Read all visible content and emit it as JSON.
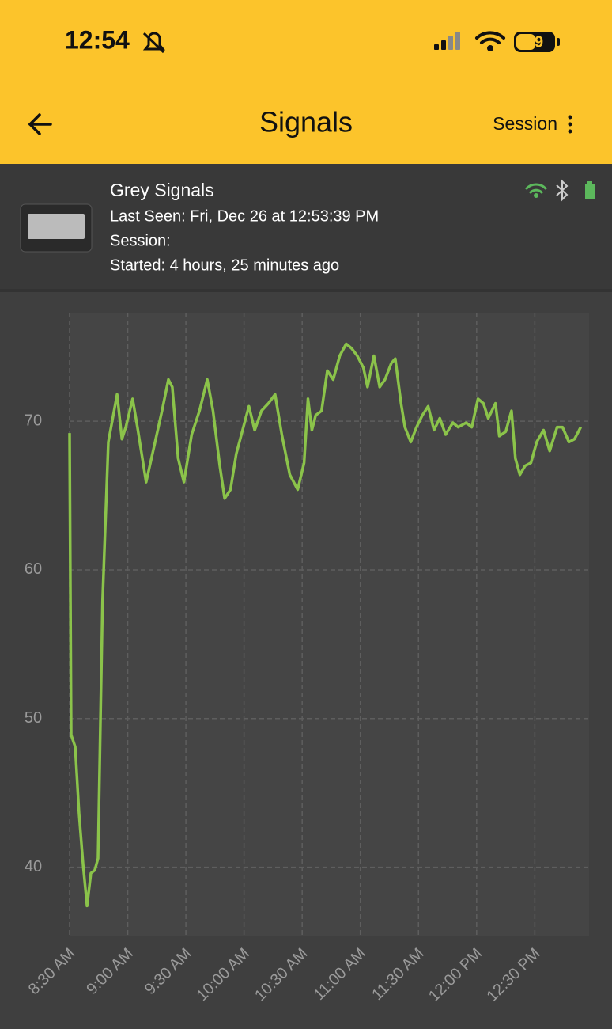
{
  "status_bar": {
    "time": "12:54",
    "battery": 49
  },
  "header": {
    "title": "Signals",
    "action": "Session"
  },
  "device": {
    "name": "Grey Signals",
    "last_seen": "Last Seen: Fri, Dec 26 at 12:53:39 PM",
    "session": "Session:",
    "started": "Started: 4 hours, 25 minutes ago"
  },
  "chart_data": {
    "type": "line",
    "x": [
      510,
      510.8,
      512.9,
      514.9,
      517,
      519,
      521,
      523,
      524.7,
      527,
      530,
      534.5,
      537,
      539,
      542.5,
      545,
      549.5,
      553.6,
      557.7,
      561,
      563,
      566,
      569,
      573,
      577,
      581,
      584,
      587.5,
      590,
      593,
      596,
      602.5,
      605.5,
      609,
      612.6,
      616,
      619.5,
      623.6,
      627.7,
      631,
      633,
      635,
      637,
      640,
      643,
      646,
      649.4,
      652.7,
      655.5,
      658.4,
      661.6,
      663.7,
      667,
      670,
      672.7,
      676,
      678,
      681,
      683,
      686,
      689,
      692,
      695,
      698,
      701,
      704,
      707.7,
      710.5,
      714.6,
      717.5,
      720.7,
      723.5,
      726,
      729.7,
      731.7,
      735,
      738,
      740,
      742.3,
      745,
      748,
      751,
      754.5,
      757.7,
      761.5,
      764.3,
      767.6,
      770.5,
      773.7
    ],
    "series": [
      {
        "color": "#8bc34a",
        "values": [
          69.2,
          48.9,
          48.1,
          43.6,
          40.1,
          37.4,
          39.6,
          39.8,
          40.6,
          57.9,
          68.6,
          71.8,
          68.8,
          69.6,
          71.5,
          69.6,
          65.9,
          68.3,
          70.7,
          72.8,
          72.3,
          67.5,
          65.9,
          69.1,
          70.7,
          72.8,
          70.7,
          67,
          64.8,
          65.4,
          67.8,
          71,
          69.4,
          70.7,
          71.2,
          71.8,
          69.1,
          66.4,
          65.4,
          67.2,
          71.5,
          69.4,
          70.4,
          70.7,
          73.4,
          72.8,
          74.4,
          75.2,
          74.9,
          74.4,
          73.6,
          72.3,
          74.4,
          72.3,
          72.8,
          73.9,
          74.2,
          71.2,
          69.6,
          68.6,
          69.6,
          70.4,
          71,
          69.4,
          70.2,
          69.1,
          69.9,
          69.6,
          69.9,
          69.6,
          71.5,
          71.2,
          70.2,
          71.2,
          69,
          69.3,
          70.7,
          67.5,
          66.4,
          67,
          67.2,
          68.6,
          69.4,
          68,
          69.6,
          69.6,
          68.6,
          68.8,
          69.6
        ]
      }
    ],
    "xlim": [
      510,
      778
    ],
    "xticks": [
      {
        "value": 510,
        "label": "8:30 AM"
      },
      {
        "value": 540,
        "label": "9:00 AM"
      },
      {
        "value": 570,
        "label": "9:30 AM"
      },
      {
        "value": 600,
        "label": "10:00 AM"
      },
      {
        "value": 630,
        "label": "10:30 AM"
      },
      {
        "value": 660,
        "label": "11:00 AM"
      },
      {
        "value": 690,
        "label": "11:30 AM"
      },
      {
        "value": 720,
        "label": "12:00 PM"
      },
      {
        "value": 750,
        "label": "12:30 PM"
      }
    ],
    "ylim": [
      35.4,
      77.3
    ],
    "yticks": [
      40,
      50,
      60,
      70
    ],
    "grid": true
  }
}
